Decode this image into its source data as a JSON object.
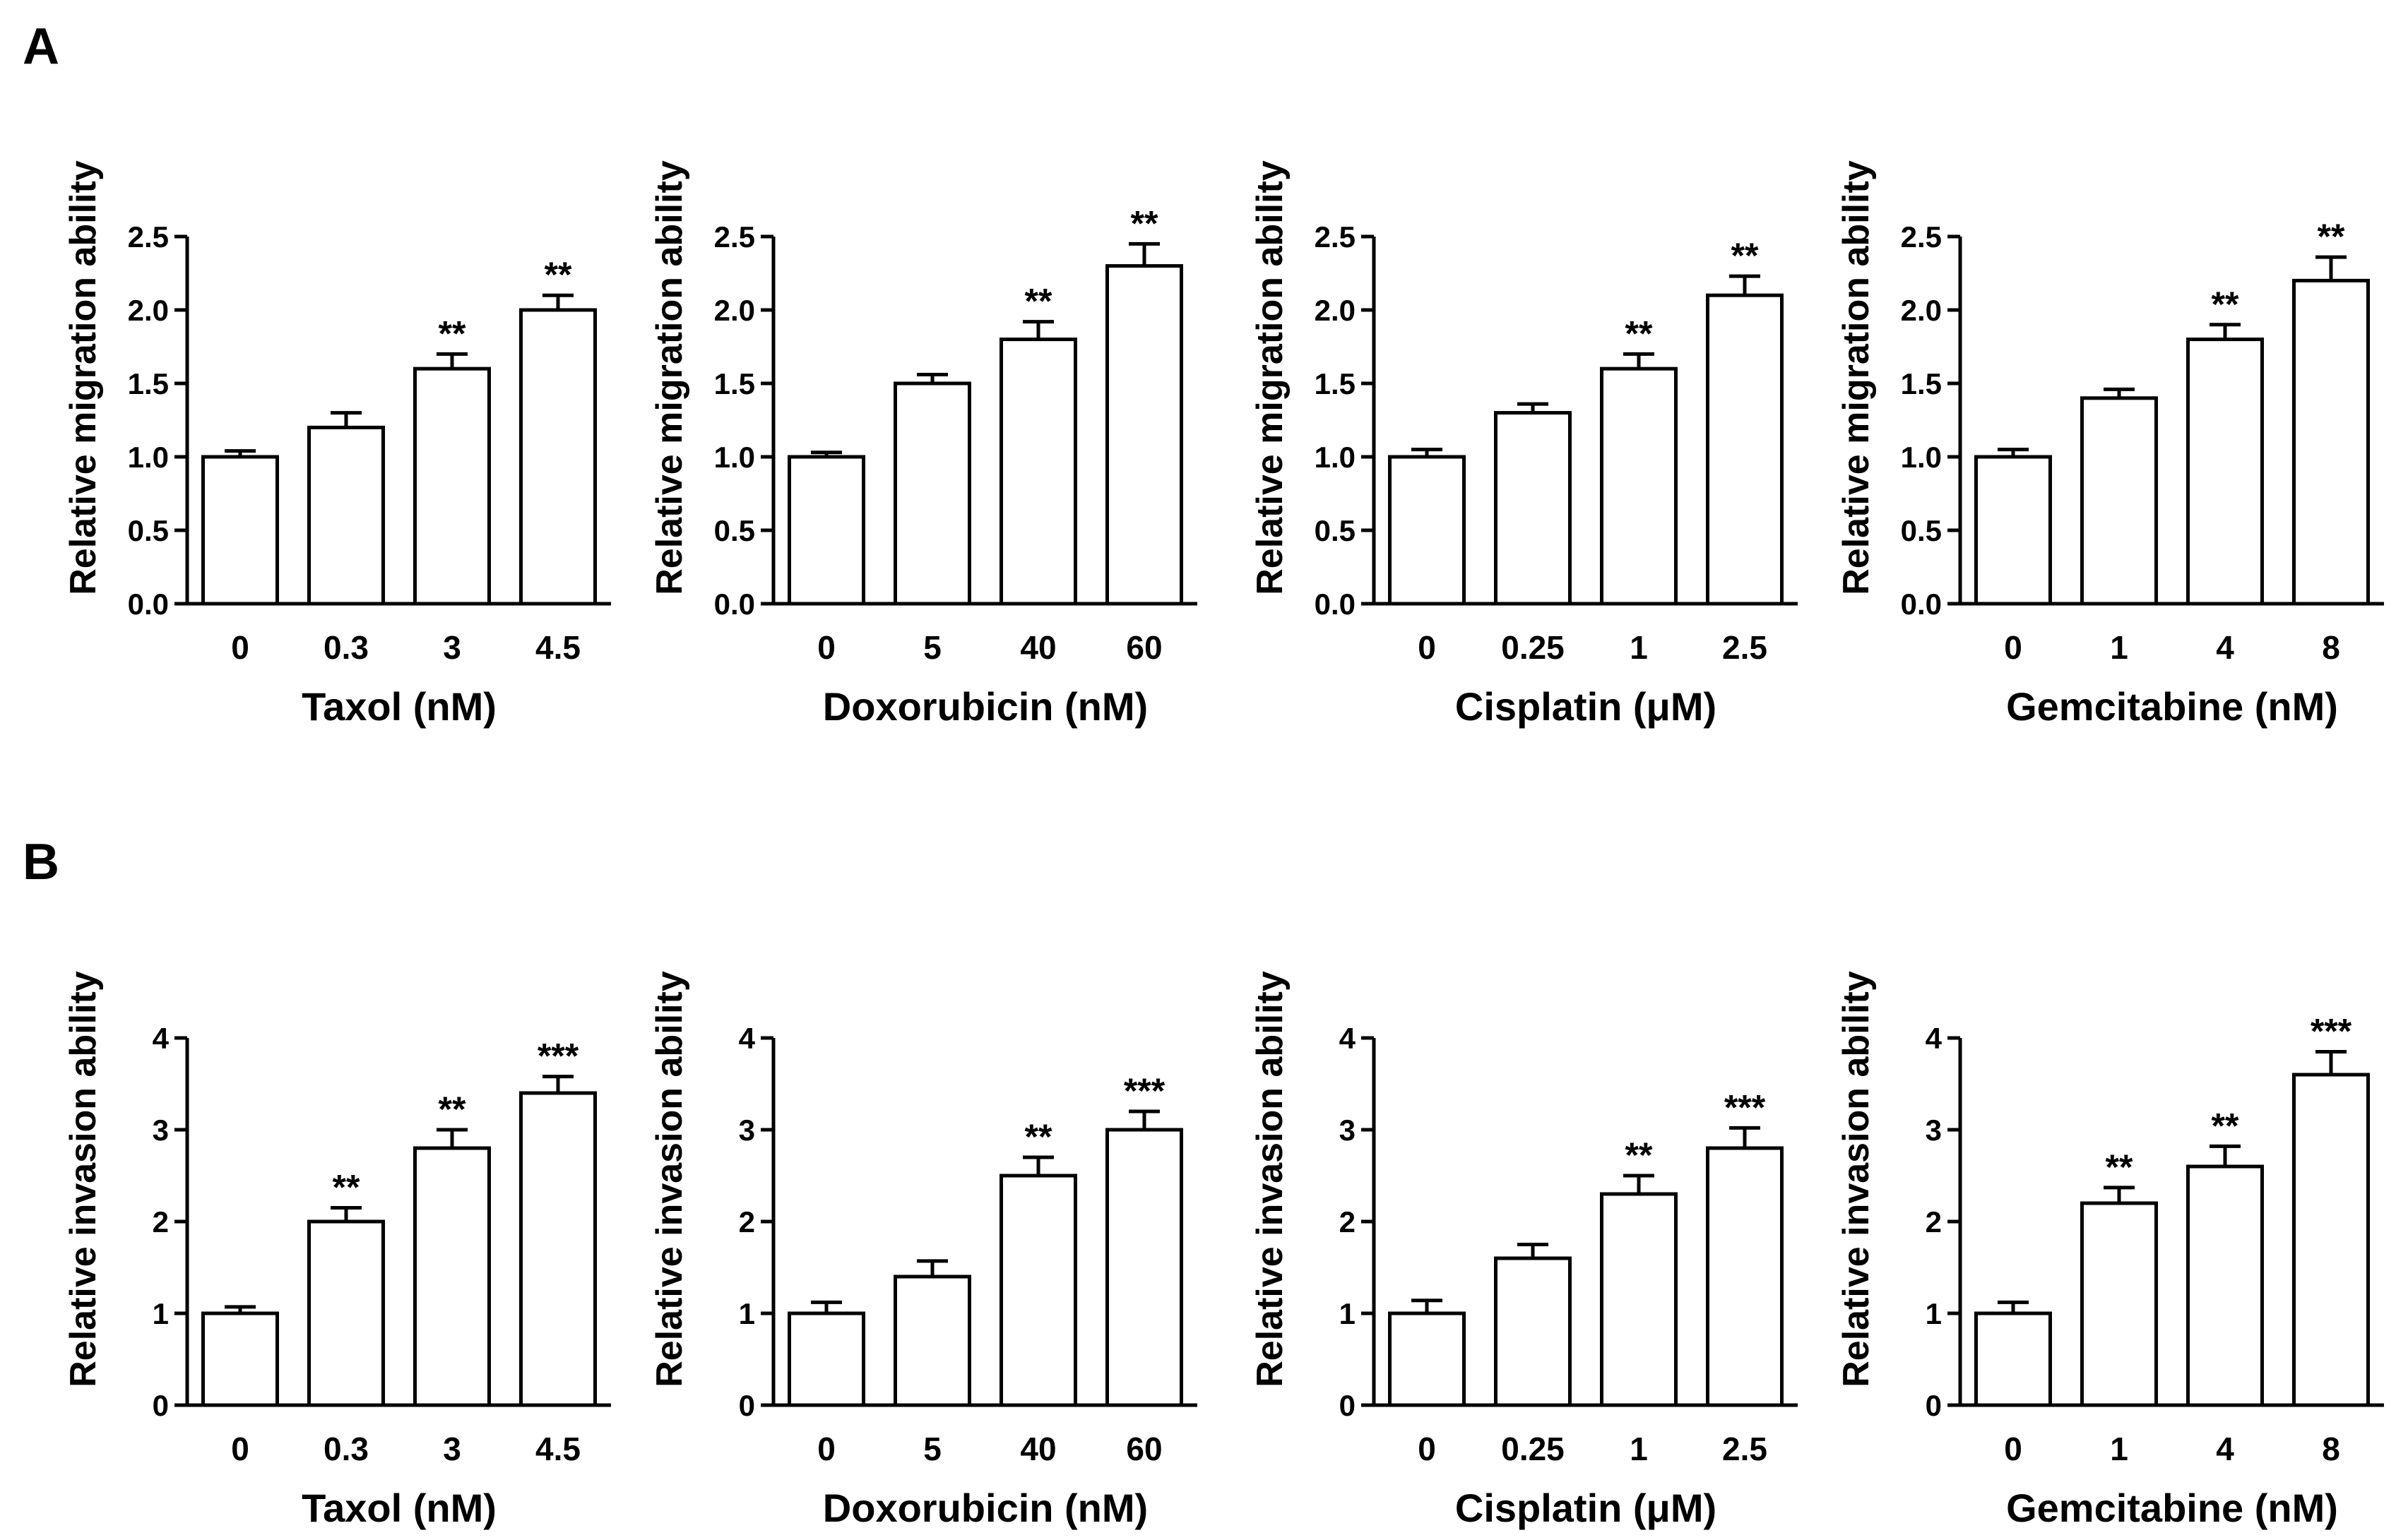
{
  "panel_labels": [
    "A",
    "B"
  ],
  "chart_data": [
    {
      "type": "bar",
      "row": "A",
      "categories": [
        "0",
        "0.3",
        "3",
        "4.5"
      ],
      "values": [
        1.0,
        1.2,
        1.6,
        2.0
      ],
      "errors": [
        0.04,
        0.1,
        0.1,
        0.1
      ],
      "significance": [
        "",
        "",
        "**",
        "**"
      ],
      "xlabel": "Taxol (nM)",
      "ylabel": "Relative migration ability",
      "ylim": [
        0,
        2.5
      ],
      "yticks": [
        "0.0",
        "0.5",
        "1.0",
        "1.5",
        "2.0",
        "2.5"
      ]
    },
    {
      "type": "bar",
      "row": "A",
      "categories": [
        "0",
        "5",
        "40",
        "60"
      ],
      "values": [
        1.0,
        1.5,
        1.8,
        2.3
      ],
      "errors": [
        0.03,
        0.06,
        0.12,
        0.15
      ],
      "significance": [
        "",
        "",
        "**",
        "**"
      ],
      "xlabel": "Doxorubicin (nM)",
      "ylabel": "Relative migration ability",
      "ylim": [
        0,
        2.5
      ],
      "yticks": [
        "0.0",
        "0.5",
        "1.0",
        "1.5",
        "2.0",
        "2.5"
      ]
    },
    {
      "type": "bar",
      "row": "A",
      "categories": [
        "0",
        "0.25",
        "1",
        "2.5"
      ],
      "values": [
        1.0,
        1.3,
        1.6,
        2.1
      ],
      "errors": [
        0.05,
        0.06,
        0.1,
        0.13
      ],
      "significance": [
        "",
        "",
        "**",
        "**"
      ],
      "xlabel": "Cisplatin (μM)",
      "ylabel": "Relative migration ability",
      "ylim": [
        0,
        2.5
      ],
      "yticks": [
        "0.0",
        "0.5",
        "1.0",
        "1.5",
        "2.0",
        "2.5"
      ]
    },
    {
      "type": "bar",
      "row": "A",
      "categories": [
        "0",
        "1",
        "4",
        "8"
      ],
      "values": [
        1.0,
        1.4,
        1.8,
        2.2
      ],
      "errors": [
        0.05,
        0.06,
        0.1,
        0.16
      ],
      "significance": [
        "",
        "",
        "**",
        "**"
      ],
      "xlabel": "Gemcitabine (nM)",
      "ylabel": "Relative migration ability",
      "ylim": [
        0,
        2.5
      ],
      "yticks": [
        "0.0",
        "0.5",
        "1.0",
        "1.5",
        "2.0",
        "2.5"
      ]
    },
    {
      "type": "bar",
      "row": "B",
      "categories": [
        "0",
        "0.3",
        "3",
        "4.5"
      ],
      "values": [
        1.0,
        2.0,
        2.8,
        3.4
      ],
      "errors": [
        0.07,
        0.15,
        0.2,
        0.18
      ],
      "significance": [
        "",
        "**",
        "**",
        "***"
      ],
      "xlabel": "Taxol (nM)",
      "ylabel": "Relative invasion ability",
      "ylim": [
        0,
        4
      ],
      "yticks": [
        "0",
        "1",
        "2",
        "3",
        "4"
      ]
    },
    {
      "type": "bar",
      "row": "B",
      "categories": [
        "0",
        "5",
        "40",
        "60"
      ],
      "values": [
        1.0,
        1.4,
        2.5,
        3.0
      ],
      "errors": [
        0.12,
        0.17,
        0.2,
        0.2
      ],
      "significance": [
        "",
        "",
        "**",
        "***"
      ],
      "xlabel": "Doxorubicin (nM)",
      "ylabel": "Relative invasion ability",
      "ylim": [
        0,
        4
      ],
      "yticks": [
        "0",
        "1",
        "2",
        "3",
        "4"
      ]
    },
    {
      "type": "bar",
      "row": "B",
      "categories": [
        "0",
        "0.25",
        "1",
        "2.5"
      ],
      "values": [
        1.0,
        1.6,
        2.3,
        2.8
      ],
      "errors": [
        0.14,
        0.15,
        0.2,
        0.22
      ],
      "significance": [
        "",
        "",
        "**",
        "***"
      ],
      "xlabel": "Cisplatin (μM)",
      "ylabel": "Relative invasion ability",
      "ylim": [
        0,
        4
      ],
      "yticks": [
        "0",
        "1",
        "2",
        "3",
        "4"
      ]
    },
    {
      "type": "bar",
      "row": "B",
      "categories": [
        "0",
        "1",
        "4",
        "8"
      ],
      "values": [
        1.0,
        2.2,
        2.6,
        3.6
      ],
      "errors": [
        0.12,
        0.17,
        0.22,
        0.25
      ],
      "significance": [
        "",
        "**",
        "**",
        "***"
      ],
      "xlabel": "Gemcitabine (nM)",
      "ylabel": "Relative invasion ability",
      "ylim": [
        0,
        4
      ],
      "yticks": [
        "0",
        "1",
        "2",
        "3",
        "4"
      ]
    }
  ]
}
